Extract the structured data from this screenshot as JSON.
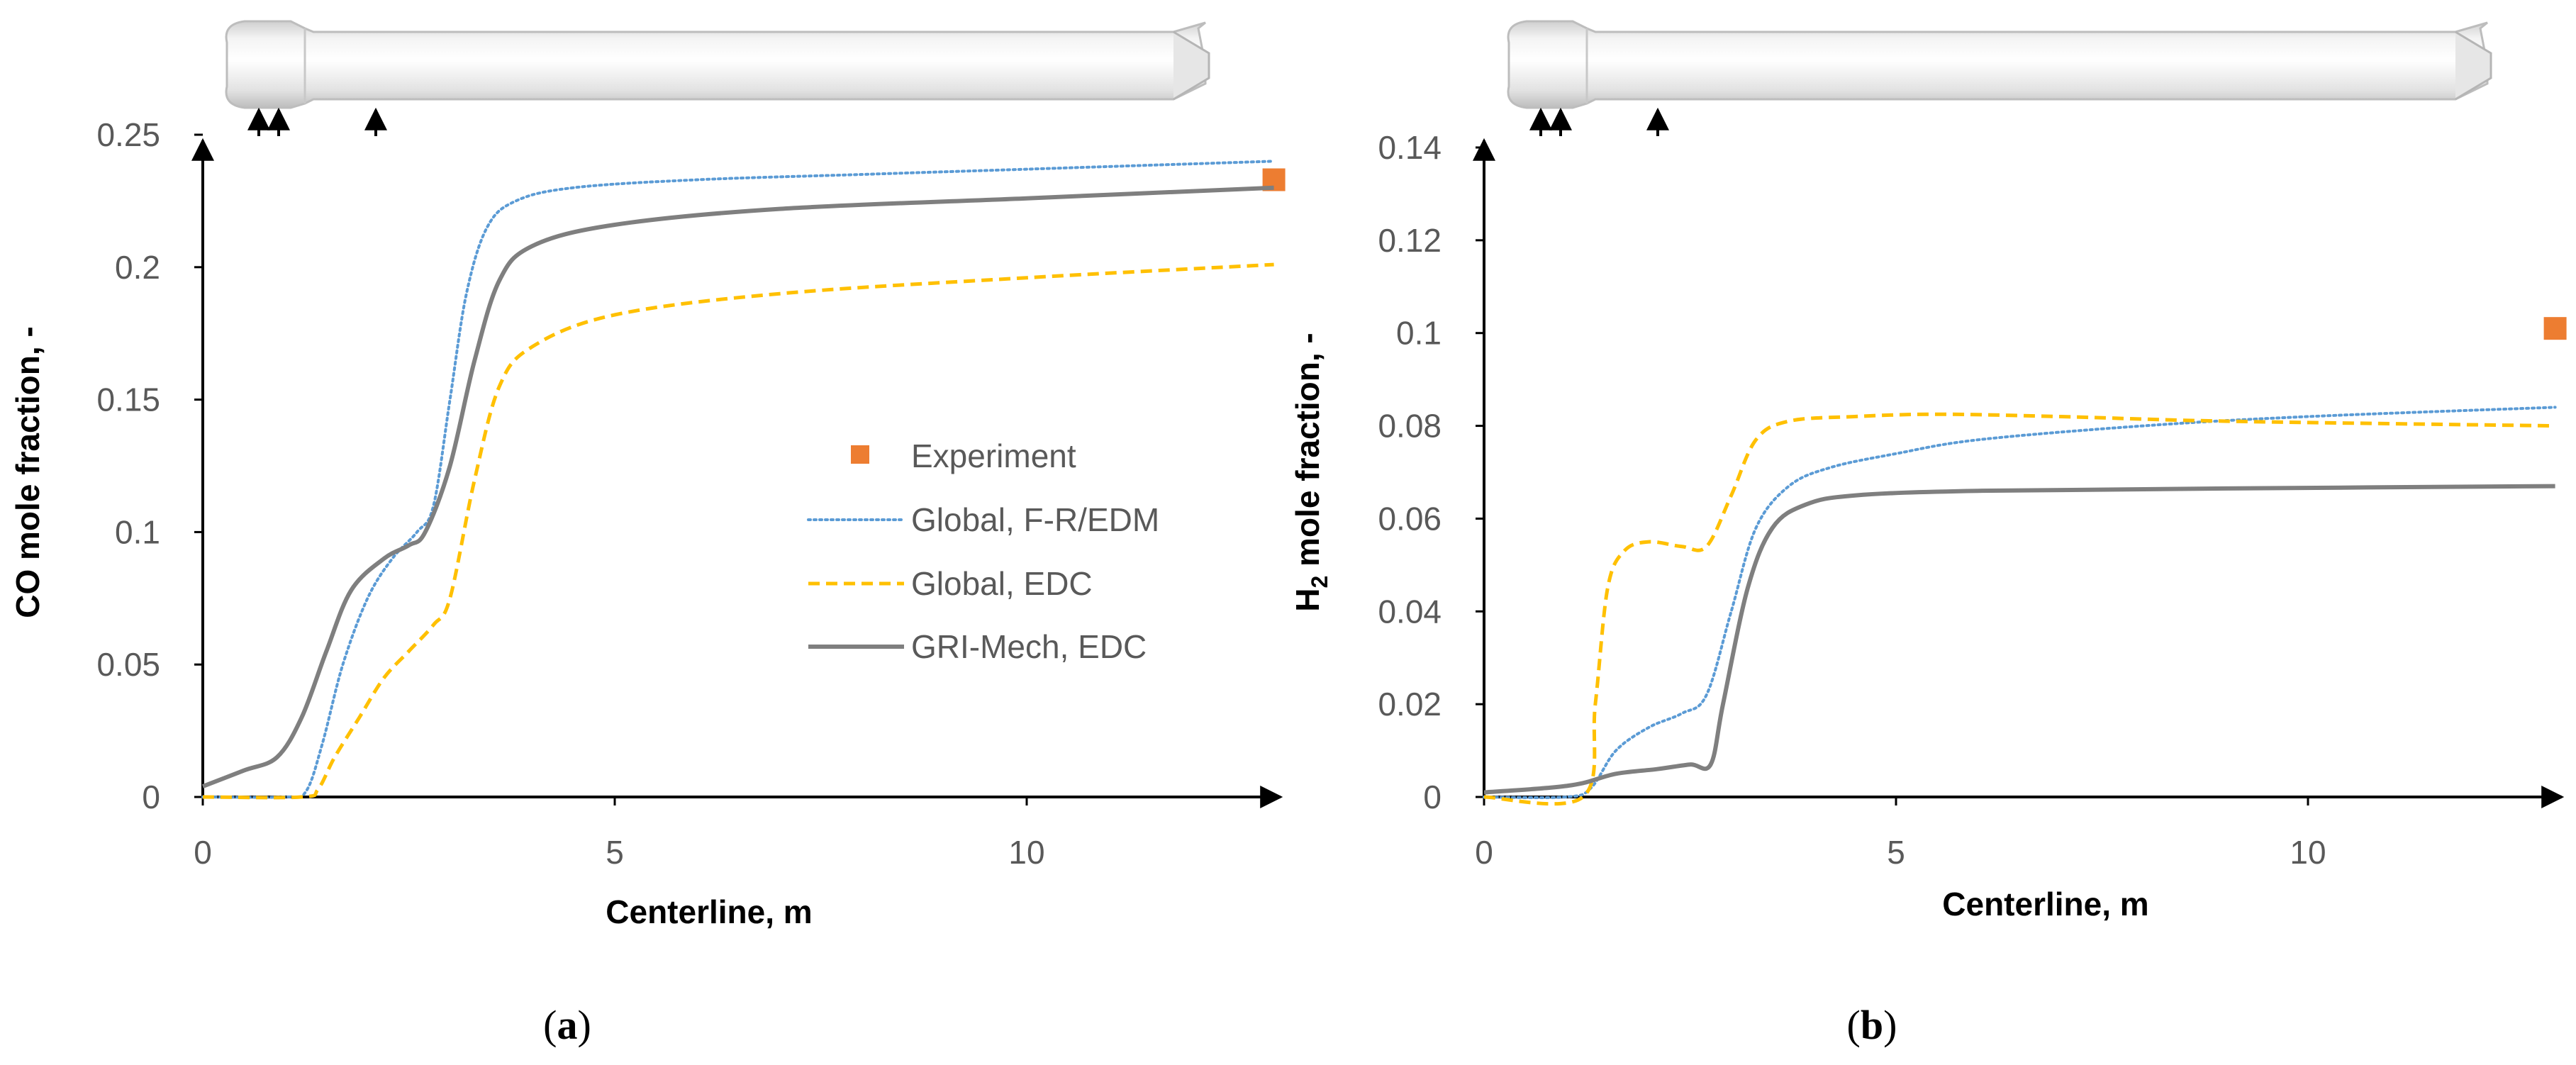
{
  "colors": {
    "experiment": "#ED7D31",
    "global_fr_edm": "#5B9BD5",
    "global_edc": "#FFC000",
    "gri_edc": "#7F7F7F",
    "axis": "#000000",
    "tick_text": "#595959"
  },
  "chart_data": [
    {
      "type": "line",
      "panel_label": "a",
      "xlabel": "Centerline, m",
      "ylabel": "CO mole fraction, -",
      "xlim": [
        0,
        14
      ],
      "ylim": [
        0,
        0.25
      ],
      "x_ticks": [
        "0",
        "5",
        "10"
      ],
      "y_ticks": [
        "0",
        "0.05",
        "0.1",
        "0.15",
        "0.2",
        "0.25"
      ],
      "legend_position": "center-right",
      "grid": false,
      "legend": [
        "Experiment",
        "Global, F-R/EDM",
        "Global, EDC",
        "GRI-Mech, EDC"
      ],
      "series": [
        {
          "name": "Experiment",
          "style": "marker-square",
          "color_key": "experiment",
          "points": [
            [
              13.0,
              0.233
            ]
          ]
        },
        {
          "name": "Global, F-R/EDM",
          "style": "dotted",
          "color_key": "global_fr_edm",
          "points": [
            [
              0,
              0
            ],
            [
              1.0,
              0
            ],
            [
              1.25,
              0.002
            ],
            [
              1.45,
              0.02
            ],
            [
              1.7,
              0.05
            ],
            [
              2.0,
              0.075
            ],
            [
              2.3,
              0.09
            ],
            [
              2.6,
              0.1
            ],
            [
              2.8,
              0.11
            ],
            [
              3.0,
              0.15
            ],
            [
              3.2,
              0.19
            ],
            [
              3.45,
              0.215
            ],
            [
              3.8,
              0.225
            ],
            [
              4.5,
              0.23
            ],
            [
              6,
              0.233
            ],
            [
              8,
              0.235
            ],
            [
              10,
              0.237
            ],
            [
              13,
              0.24
            ]
          ]
        },
        {
          "name": "Global, EDC",
          "style": "dashed",
          "color_key": "global_edc",
          "points": [
            [
              0,
              0
            ],
            [
              1.2,
              0
            ],
            [
              1.4,
              0.003
            ],
            [
              1.6,
              0.015
            ],
            [
              1.9,
              0.03
            ],
            [
              2.2,
              0.045
            ],
            [
              2.5,
              0.055
            ],
            [
              2.8,
              0.065
            ],
            [
              3.0,
              0.075
            ],
            [
              3.3,
              0.12
            ],
            [
              3.6,
              0.155
            ],
            [
              4.0,
              0.17
            ],
            [
              5,
              0.182
            ],
            [
              7,
              0.19
            ],
            [
              10,
              0.196
            ],
            [
              13,
              0.201
            ]
          ]
        },
        {
          "name": "GRI-Mech, EDC",
          "style": "solid",
          "color_key": "gri_edc",
          "points": [
            [
              0,
              0.004
            ],
            [
              0.5,
              0.01
            ],
            [
              0.9,
              0.015
            ],
            [
              1.2,
              0.03
            ],
            [
              1.5,
              0.055
            ],
            [
              1.8,
              0.078
            ],
            [
              2.2,
              0.09
            ],
            [
              2.5,
              0.095
            ],
            [
              2.7,
              0.1
            ],
            [
              3.0,
              0.125
            ],
            [
              3.3,
              0.165
            ],
            [
              3.6,
              0.195
            ],
            [
              4.0,
              0.208
            ],
            [
              5,
              0.216
            ],
            [
              7,
              0.222
            ],
            [
              10,
              0.226
            ],
            [
              13,
              0.23
            ]
          ]
        }
      ]
    },
    {
      "type": "line",
      "panel_label": "b",
      "xlabel": "Centerline, m",
      "ylabel_main": "H",
      "ylabel_sub": "2",
      "ylabel_rest": " mole fraction, -",
      "xlim": [
        0,
        14
      ],
      "ylim": [
        0,
        0.14
      ],
      "x_ticks": [
        "0",
        "5",
        "10"
      ],
      "y_ticks": [
        "0",
        "0.02",
        "0.04",
        "0.06",
        "0.08",
        "0.1",
        "0.12",
        "0.14"
      ],
      "legend_position": "shared (see panel a)",
      "grid": false,
      "series": [
        {
          "name": "Experiment",
          "style": "marker-square",
          "color_key": "experiment",
          "points": [
            [
              13.0,
              0.101
            ]
          ]
        },
        {
          "name": "Global, F-R/EDM",
          "style": "dotted",
          "color_key": "global_fr_edm",
          "points": [
            [
              0,
              0
            ],
            [
              1.0,
              0
            ],
            [
              1.3,
              0.002
            ],
            [
              1.6,
              0.01
            ],
            [
              2.0,
              0.015
            ],
            [
              2.4,
              0.018
            ],
            [
              2.7,
              0.022
            ],
            [
              3.0,
              0.04
            ],
            [
              3.3,
              0.058
            ],
            [
              3.7,
              0.067
            ],
            [
              4.2,
              0.071
            ],
            [
              5,
              0.074
            ],
            [
              6,
              0.077
            ],
            [
              8,
              0.08
            ],
            [
              10,
              0.082
            ],
            [
              13,
              0.084
            ]
          ]
        },
        {
          "name": "Global, EDC",
          "style": "dashed",
          "color_key": "global_edc",
          "points": [
            [
              0,
              0
            ],
            [
              1.2,
              0
            ],
            [
              1.35,
              0.02
            ],
            [
              1.5,
              0.045
            ],
            [
              1.7,
              0.053
            ],
            [
              2.0,
              0.055
            ],
            [
              2.4,
              0.054
            ],
            [
              2.7,
              0.054
            ],
            [
              3.0,
              0.065
            ],
            [
              3.3,
              0.077
            ],
            [
              3.7,
              0.081
            ],
            [
              4.5,
              0.082
            ],
            [
              5.5,
              0.0825
            ],
            [
              7,
              0.082
            ],
            [
              9,
              0.081
            ],
            [
              13,
              0.08
            ]
          ]
        },
        {
          "name": "GRI-Mech, EDC",
          "style": "solid",
          "color_key": "gri_edc",
          "points": [
            [
              0,
              0.001
            ],
            [
              0.8,
              0.002
            ],
            [
              1.2,
              0.003
            ],
            [
              1.6,
              0.005
            ],
            [
              2.1,
              0.006
            ],
            [
              2.5,
              0.007
            ],
            [
              2.75,
              0.007
            ],
            [
              2.9,
              0.02
            ],
            [
              3.2,
              0.045
            ],
            [
              3.5,
              0.058
            ],
            [
              3.9,
              0.063
            ],
            [
              4.5,
              0.065
            ],
            [
              6,
              0.066
            ],
            [
              9,
              0.0665
            ],
            [
              13,
              0.067
            ]
          ]
        }
      ]
    }
  ]
}
